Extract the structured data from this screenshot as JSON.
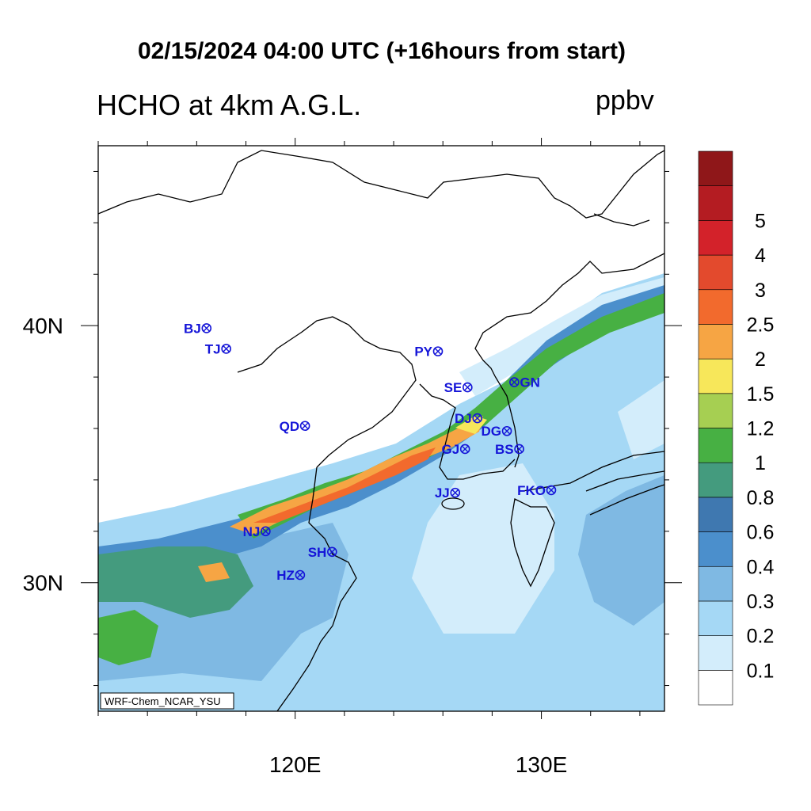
{
  "title": "02/15/2024 04:00 UTC (+16hours from start)",
  "subtitle_left": "HCHO at 4km A.G.L.",
  "subtitle_right": "ppbv",
  "credit": "WRF-Chem_NCAR_YSU",
  "x_ticks": [
    {
      "label": "120E",
      "lon": 120
    },
    {
      "label": "130E",
      "lon": 130
    }
  ],
  "y_ticks": [
    {
      "label": "40N",
      "lat": 40
    },
    {
      "label": "30N",
      "lat": 30
    }
  ],
  "extent": {
    "lon_min": 112,
    "lon_max": 135,
    "lat_min": 25,
    "lat_max": 47
  },
  "colorbar": {
    "colors": [
      "#ffffff",
      "#d3edfb",
      "#a5d8f5",
      "#7fb9e3",
      "#4b8fcc",
      "#3f78b0",
      "#449b7e",
      "#47b043",
      "#a6cf52",
      "#f7e75a",
      "#f6a544",
      "#f26a2d",
      "#e34a2d",
      "#d3222a",
      "#b41c22",
      "#8f1719"
    ],
    "labels": [
      "0.1",
      "0.2",
      "0.3",
      "0.4",
      "0.6",
      "0.8",
      "1",
      "1.2",
      "1.5",
      "2",
      "2.5",
      "3",
      "4",
      "5"
    ]
  },
  "cities": [
    {
      "label": "BJ",
      "lon": 116.4,
      "lat": 39.9
    },
    {
      "label": "TJ",
      "lon": 117.2,
      "lat": 39.1
    },
    {
      "label": "PY",
      "lon": 125.8,
      "lat": 39.0
    },
    {
      "label": "SE",
      "lon": 127.0,
      "lat": 37.6
    },
    {
      "label": "GN",
      "lon": 128.9,
      "lat": 37.8
    },
    {
      "label": "QD",
      "lon": 120.4,
      "lat": 36.1
    },
    {
      "label": "DJ",
      "lon": 127.4,
      "lat": 36.4
    },
    {
      "label": "DG",
      "lon": 128.6,
      "lat": 35.9
    },
    {
      "label": "GJ",
      "lon": 126.9,
      "lat": 35.2
    },
    {
      "label": "BS",
      "lon": 129.1,
      "lat": 35.2
    },
    {
      "label": "JJ",
      "lon": 126.5,
      "lat": 33.5
    },
    {
      "label": "FKO",
      "lon": 130.4,
      "lat": 33.6
    },
    {
      "label": "NJ",
      "lon": 118.8,
      "lat": 32.0
    },
    {
      "label": "SH",
      "lon": 121.5,
      "lat": 31.2
    },
    {
      "label": "HZ",
      "lon": 120.2,
      "lat": 30.3
    }
  ]
}
